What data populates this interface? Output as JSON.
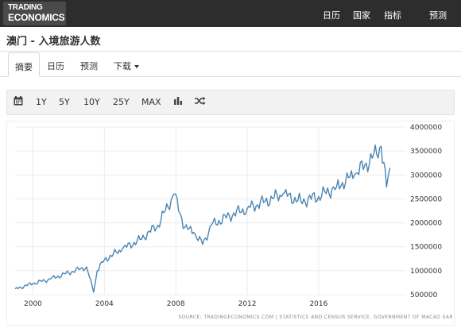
{
  "header": {
    "logo": {
      "line1": "TRADING",
      "line2": "ECONOMICS"
    },
    "nav": [
      "日历",
      "国家",
      "指标",
      "预测"
    ]
  },
  "page_title": "澳门 - 入境旅游人数",
  "tabs": [
    {
      "label": "摘要",
      "active": true
    },
    {
      "label": "日历",
      "active": false
    },
    {
      "label": "预测",
      "active": false
    },
    {
      "label": "下载",
      "active": false,
      "dropdown": true
    }
  ],
  "toolbar": {
    "icons": [
      "calendar-icon",
      "bar-chart-icon",
      "shuffle-icon"
    ],
    "ranges": [
      "1Y",
      "5Y",
      "10Y",
      "25Y",
      "MAX"
    ]
  },
  "chart_data": {
    "type": "line",
    "series_color": "#4a86b4",
    "x_ticks": [
      "2000",
      "2004",
      "2008",
      "2012",
      "2016"
    ],
    "y_ticks": [
      "4000000",
      "3500000",
      "3000000",
      "2500000",
      "2000000",
      "1500000",
      "1000000",
      "500000"
    ],
    "ylim": [
      500000,
      4000000
    ],
    "xlim": [
      1999.0,
      2020.9
    ],
    "x": [
      1999.0,
      2000.0,
      2001.0,
      2002.0,
      2003.0,
      2003.4,
      2003.6,
      2004.0,
      2005.0,
      2006.0,
      2007.0,
      2007.9,
      2008.5,
      2009.0,
      2009.5,
      2010.0,
      2011.0,
      2012.0,
      2013.0,
      2014.0,
      2015.0,
      2016.0,
      2017.0,
      2018.0,
      2019.0,
      2019.5,
      2019.8,
      2020.0
    ],
    "y": [
      620000,
      730000,
      830000,
      960000,
      1080000,
      550000,
      1000000,
      1230000,
      1450000,
      1650000,
      1950000,
      2600000,
      1900000,
      1800000,
      1550000,
      1950000,
      2150000,
      2300000,
      2450000,
      2600000,
      2450000,
      2550000,
      2750000,
      3000000,
      3350000,
      3600000,
      2750000,
      3150000
    ],
    "source": "SOURCE: TRADINGECONOMICS.COM  |  STATISTICS AND CENSUS SERVICE, GOVERNMENT OF MACAO SAR"
  }
}
